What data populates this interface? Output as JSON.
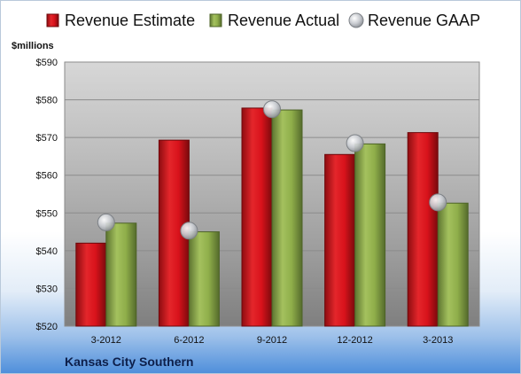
{
  "chart_data": {
    "type": "bar",
    "categories": [
      "3-2012",
      "6-2012",
      "9-2012",
      "12-2012",
      "3-2013"
    ],
    "series": [
      {
        "name": "Revenue Estimate",
        "kind": "bar",
        "color": "#d8121b",
        "values": [
          542,
          569.3,
          577.8,
          565.5,
          571.3
        ]
      },
      {
        "name": "Revenue Actual",
        "kind": "bar",
        "color": "#8fae4a",
        "values": [
          547.3,
          545,
          577.3,
          568.3,
          552.6
        ]
      },
      {
        "name": "Revenue GAAP",
        "kind": "marker",
        "color": "#b8bcc2",
        "values": [
          547.5,
          545.3,
          577.5,
          568.5,
          552.8
        ]
      }
    ],
    "ylabel": "$millions",
    "ylim": [
      520,
      590
    ],
    "yticks": [
      520,
      530,
      540,
      550,
      560,
      570,
      580,
      590
    ],
    "ytick_labels": [
      "$520",
      "$530",
      "$540",
      "$550",
      "$560",
      "$570",
      "$580",
      "$590"
    ],
    "grid": true,
    "legend_position": "top",
    "company": "Kansas City Southern"
  }
}
